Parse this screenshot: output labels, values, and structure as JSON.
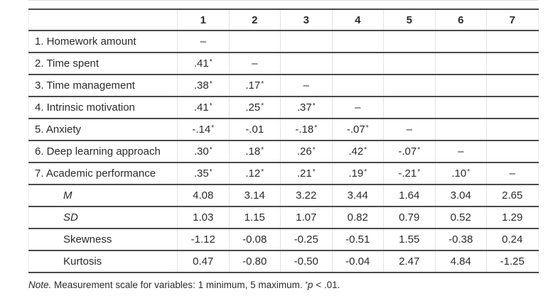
{
  "colors": {
    "rule": "#4a4a4a",
    "text": "#2b2b2b",
    "grid": "#e3e3e3"
  },
  "table": {
    "column_headers": [
      "1",
      "2",
      "3",
      "4",
      "5",
      "6",
      "7"
    ],
    "rows": [
      {
        "label": "1. Homework amount",
        "indent": false,
        "italic": false,
        "values": [
          "–",
          "",
          "",
          "",
          "",
          "",
          ""
        ]
      },
      {
        "label": "2. Time spent",
        "indent": false,
        "italic": false,
        "values": [
          ".41*",
          "–",
          "",
          "",
          "",
          "",
          ""
        ]
      },
      {
        "label": "3. Time management",
        "indent": false,
        "italic": false,
        "values": [
          ".38*",
          ".17*",
          "–",
          "",
          "",
          "",
          ""
        ]
      },
      {
        "label": "4. Intrinsic motivation",
        "indent": false,
        "italic": false,
        "values": [
          ".41*",
          ".25*",
          ".37*",
          "–",
          "",
          "",
          ""
        ]
      },
      {
        "label": "5. Anxiety",
        "indent": false,
        "italic": false,
        "values": [
          "-.14*",
          "-.01",
          "-.18*",
          "-.07*",
          "–",
          "",
          ""
        ]
      },
      {
        "label": "6. Deep learning approach",
        "indent": false,
        "italic": false,
        "values": [
          ".30*",
          ".18*",
          ".26*",
          ".42*",
          "-.07*",
          "–",
          ""
        ]
      },
      {
        "label": "7. Academic performance",
        "indent": false,
        "italic": false,
        "values": [
          ".35*",
          ".12*",
          ".21*",
          ".19*",
          "-.21*",
          ".10*",
          "–"
        ]
      },
      {
        "label": "M",
        "indent": true,
        "italic": true,
        "values": [
          "4.08",
          "3.14",
          "3.22",
          "3.44",
          "1.64",
          "3.04",
          "2.65"
        ]
      },
      {
        "label": "SD",
        "indent": true,
        "italic": true,
        "values": [
          "1.03",
          "1.15",
          "1.07",
          "0.82",
          "0.79",
          "0.52",
          "1.29"
        ]
      },
      {
        "label": "Skewness",
        "indent": true,
        "italic": false,
        "values": [
          "-1.12",
          "-0.08",
          "-0.25",
          "-0.51",
          "1.55",
          "-0.38",
          "0.24"
        ]
      },
      {
        "label": "Kurtosis",
        "indent": true,
        "italic": false,
        "values": [
          "0.47",
          "-0.80",
          "-0.50",
          "-0.04",
          "2.47",
          "4.84",
          "-1.25"
        ]
      }
    ]
  },
  "note": {
    "parts": [
      {
        "text": "Note.",
        "italic": true
      },
      {
        "text": " Measurement scale for variables: 1 minimum, 5 maximum. "
      },
      {
        "text": "*",
        "sup": true
      },
      {
        "text": "p",
        "italic": true
      },
      {
        "text": " < .01."
      }
    ]
  }
}
